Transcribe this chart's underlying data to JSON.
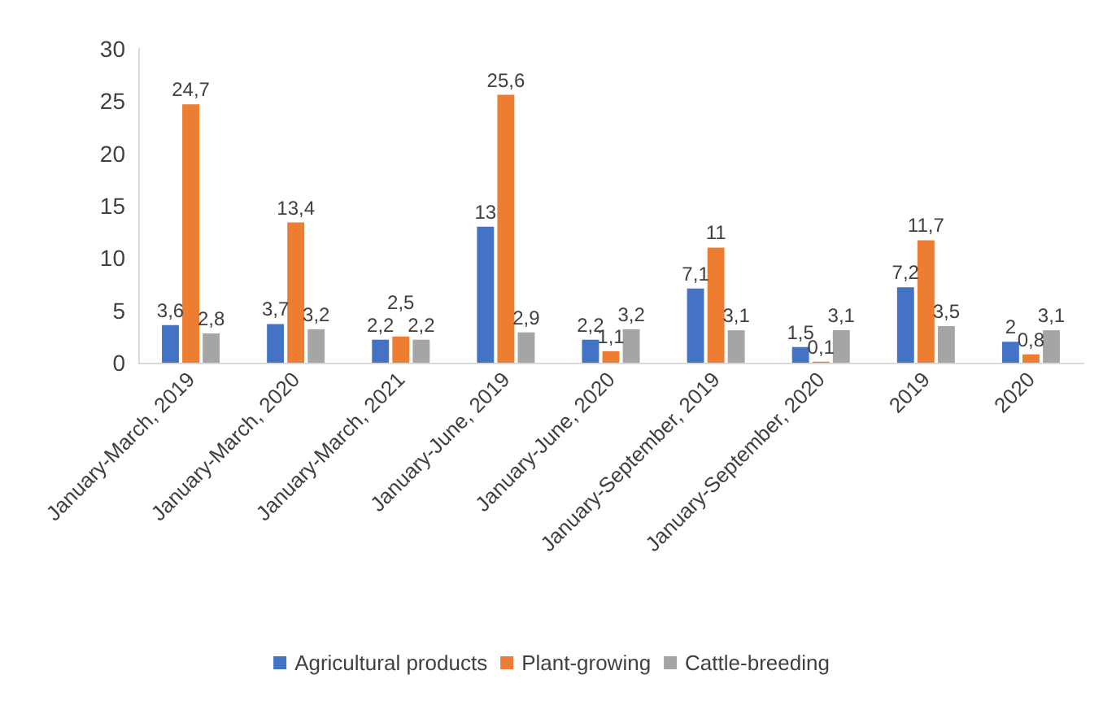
{
  "chart_data": {
    "type": "bar",
    "categories": [
      "January-March, 2019",
      "January-March, 2020",
      "January-March, 2021",
      "January-June, 2019",
      "January-June, 2020",
      "January-September, 2019",
      "January-September, 2020",
      "2019",
      "2020"
    ],
    "series": [
      {
        "name": "Agricultural products",
        "color": "#4472c4",
        "values": [
          3.6,
          3.7,
          2.2,
          13,
          2.2,
          7.1,
          1.5,
          7.2,
          2
        ],
        "value_labels": [
          "3,6",
          "3,7",
          "2,2",
          "13",
          "2,2",
          "7,1",
          "1,5",
          "7,2",
          "2"
        ]
      },
      {
        "name": "Plant-growing",
        "color": "#ed7d31",
        "values": [
          24.7,
          13.4,
          2.5,
          25.6,
          1.1,
          11,
          0.1,
          11.7,
          0.8
        ],
        "value_labels": [
          "24,7",
          "13,4",
          "2,5",
          "25,6",
          "1,1",
          "11",
          "0,1",
          "11,7",
          "0,8"
        ]
      },
      {
        "name": "Cattle-breeding",
        "color": "#a5a5a5",
        "values": [
          2.8,
          3.2,
          2.2,
          2.9,
          3.2,
          3.1,
          3.1,
          3.5,
          3.1
        ],
        "value_labels": [
          "2,8",
          "3,2",
          "2,2",
          "2,9",
          "3,2",
          "3,1",
          "3,1",
          "3,5",
          "3,1"
        ]
      }
    ],
    "ylim": [
      0,
      30
    ],
    "yticks": [
      0,
      5,
      10,
      15,
      20,
      25,
      30
    ],
    "grid": false,
    "legend": "bottom"
  }
}
